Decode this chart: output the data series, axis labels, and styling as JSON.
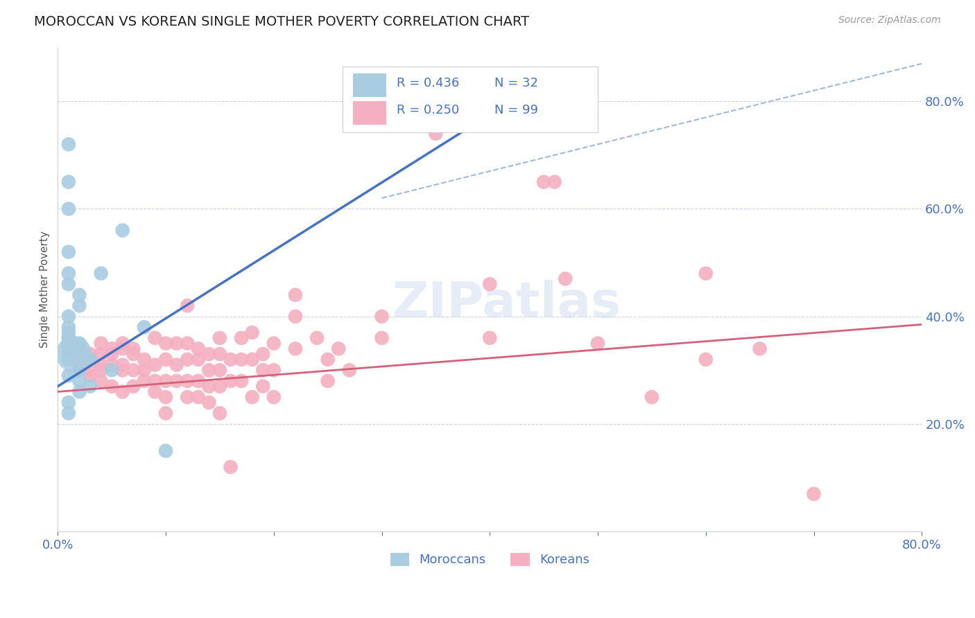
{
  "title": "MOROCCAN VS KOREAN SINGLE MOTHER POVERTY CORRELATION CHART",
  "source": "Source: ZipAtlas.com",
  "ylabel": "Single Mother Poverty",
  "moroccan_color": "#a8cce0",
  "moroccan_color_dark": "#5a9fd4",
  "korean_color": "#f4b0c0",
  "korean_color_dark": "#e06080",
  "moroccan_line_color": "#4472c4",
  "korean_line_color": "#d4607a",
  "dashed_line_color": "#a0b8d8",
  "background_color": "#ffffff",
  "grid_color": "#d0d4e8",
  "watermark": "ZIPatlas",
  "moroccan_legend_color": "#a8cce0",
  "korean_legend_color": "#f4b0c0",
  "legend_r1": "R = 0.436",
  "legend_n1": "N = 32",
  "legend_r2": "R = 0.250",
  "legend_n2": "N = 99",
  "legend_label1": "Moroccans",
  "legend_label2": "Koreans",
  "moroccan_points": [
    [
      0.01,
      0.72
    ],
    [
      0.01,
      0.65
    ],
    [
      0.01,
      0.52
    ],
    [
      0.01,
      0.48
    ],
    [
      0.02,
      0.44
    ],
    [
      0.02,
      0.42
    ],
    [
      0.01,
      0.38
    ],
    [
      0.01,
      0.37
    ],
    [
      0.01,
      0.36
    ],
    [
      0.02,
      0.35
    ],
    [
      0.01,
      0.345
    ],
    [
      0.01,
      0.34
    ],
    [
      0.01,
      0.33
    ],
    [
      0.02,
      0.33
    ],
    [
      0.01,
      0.32
    ],
    [
      0.01,
      0.32
    ],
    [
      0.02,
      0.3
    ],
    [
      0.03,
      0.32
    ],
    [
      0.04,
      0.48
    ],
    [
      0.05,
      0.3
    ],
    [
      0.06,
      0.56
    ],
    [
      0.08,
      0.38
    ],
    [
      0.1,
      0.15
    ],
    [
      0.02,
      0.28
    ],
    [
      0.01,
      0.29
    ],
    [
      0.03,
      0.27
    ],
    [
      0.02,
      0.26
    ],
    [
      0.01,
      0.24
    ],
    [
      0.01,
      0.22
    ],
    [
      0.01,
      0.6
    ],
    [
      0.01,
      0.4
    ],
    [
      0.01,
      0.46
    ]
  ],
  "moroccan_big_point": [
    0.015,
    0.33
  ],
  "korean_points": [
    [
      0.01,
      0.36
    ],
    [
      0.01,
      0.35
    ],
    [
      0.01,
      0.34
    ],
    [
      0.02,
      0.34
    ],
    [
      0.02,
      0.32
    ],
    [
      0.02,
      0.31
    ],
    [
      0.02,
      0.3
    ],
    [
      0.03,
      0.33
    ],
    [
      0.03,
      0.32
    ],
    [
      0.03,
      0.3
    ],
    [
      0.03,
      0.29
    ],
    [
      0.04,
      0.35
    ],
    [
      0.04,
      0.33
    ],
    [
      0.04,
      0.31
    ],
    [
      0.04,
      0.3
    ],
    [
      0.04,
      0.28
    ],
    [
      0.05,
      0.34
    ],
    [
      0.05,
      0.33
    ],
    [
      0.05,
      0.31
    ],
    [
      0.05,
      0.27
    ],
    [
      0.06,
      0.35
    ],
    [
      0.06,
      0.34
    ],
    [
      0.06,
      0.31
    ],
    [
      0.06,
      0.3
    ],
    [
      0.06,
      0.26
    ],
    [
      0.07,
      0.34
    ],
    [
      0.07,
      0.33
    ],
    [
      0.07,
      0.3
    ],
    [
      0.07,
      0.27
    ],
    [
      0.08,
      0.32
    ],
    [
      0.08,
      0.3
    ],
    [
      0.08,
      0.28
    ],
    [
      0.09,
      0.36
    ],
    [
      0.09,
      0.31
    ],
    [
      0.09,
      0.28
    ],
    [
      0.09,
      0.26
    ],
    [
      0.1,
      0.35
    ],
    [
      0.1,
      0.32
    ],
    [
      0.1,
      0.28
    ],
    [
      0.1,
      0.25
    ],
    [
      0.1,
      0.22
    ],
    [
      0.11,
      0.35
    ],
    [
      0.11,
      0.31
    ],
    [
      0.11,
      0.28
    ],
    [
      0.12,
      0.42
    ],
    [
      0.12,
      0.35
    ],
    [
      0.12,
      0.32
    ],
    [
      0.12,
      0.28
    ],
    [
      0.12,
      0.25
    ],
    [
      0.13,
      0.34
    ],
    [
      0.13,
      0.32
    ],
    [
      0.13,
      0.28
    ],
    [
      0.13,
      0.25
    ],
    [
      0.14,
      0.33
    ],
    [
      0.14,
      0.3
    ],
    [
      0.14,
      0.27
    ],
    [
      0.14,
      0.24
    ],
    [
      0.15,
      0.36
    ],
    [
      0.15,
      0.33
    ],
    [
      0.15,
      0.3
    ],
    [
      0.15,
      0.27
    ],
    [
      0.15,
      0.22
    ],
    [
      0.16,
      0.32
    ],
    [
      0.16,
      0.28
    ],
    [
      0.16,
      0.12
    ],
    [
      0.17,
      0.36
    ],
    [
      0.17,
      0.32
    ],
    [
      0.17,
      0.28
    ],
    [
      0.18,
      0.37
    ],
    [
      0.18,
      0.32
    ],
    [
      0.18,
      0.25
    ],
    [
      0.19,
      0.33
    ],
    [
      0.19,
      0.3
    ],
    [
      0.19,
      0.27
    ],
    [
      0.2,
      0.35
    ],
    [
      0.2,
      0.3
    ],
    [
      0.2,
      0.25
    ],
    [
      0.22,
      0.44
    ],
    [
      0.22,
      0.4
    ],
    [
      0.22,
      0.34
    ],
    [
      0.24,
      0.36
    ],
    [
      0.25,
      0.32
    ],
    [
      0.25,
      0.28
    ],
    [
      0.26,
      0.34
    ],
    [
      0.27,
      0.3
    ],
    [
      0.3,
      0.4
    ],
    [
      0.3,
      0.36
    ],
    [
      0.35,
      0.74
    ],
    [
      0.4,
      0.36
    ],
    [
      0.4,
      0.46
    ],
    [
      0.45,
      0.65
    ],
    [
      0.46,
      0.65
    ],
    [
      0.47,
      0.47
    ],
    [
      0.5,
      0.35
    ],
    [
      0.55,
      0.25
    ],
    [
      0.6,
      0.48
    ],
    [
      0.6,
      0.32
    ],
    [
      0.65,
      0.34
    ],
    [
      0.7,
      0.07
    ]
  ],
  "moroccan_line_x": [
    0.0,
    0.38
  ],
  "moroccan_line_y": [
    0.27,
    0.75
  ],
  "dashed_line_x": [
    0.3,
    0.8
  ],
  "dashed_line_y": [
    0.62,
    0.87
  ],
  "korean_line_x": [
    0.0,
    0.8
  ],
  "korean_line_y": [
    0.26,
    0.385
  ],
  "xlim": [
    0.0,
    0.8
  ],
  "ylim": [
    0.0,
    0.9
  ],
  "right_yticks": [
    0.2,
    0.4,
    0.6,
    0.8
  ],
  "label_color": "#4472c4",
  "source_color": "#999999",
  "title_color": "#222222"
}
